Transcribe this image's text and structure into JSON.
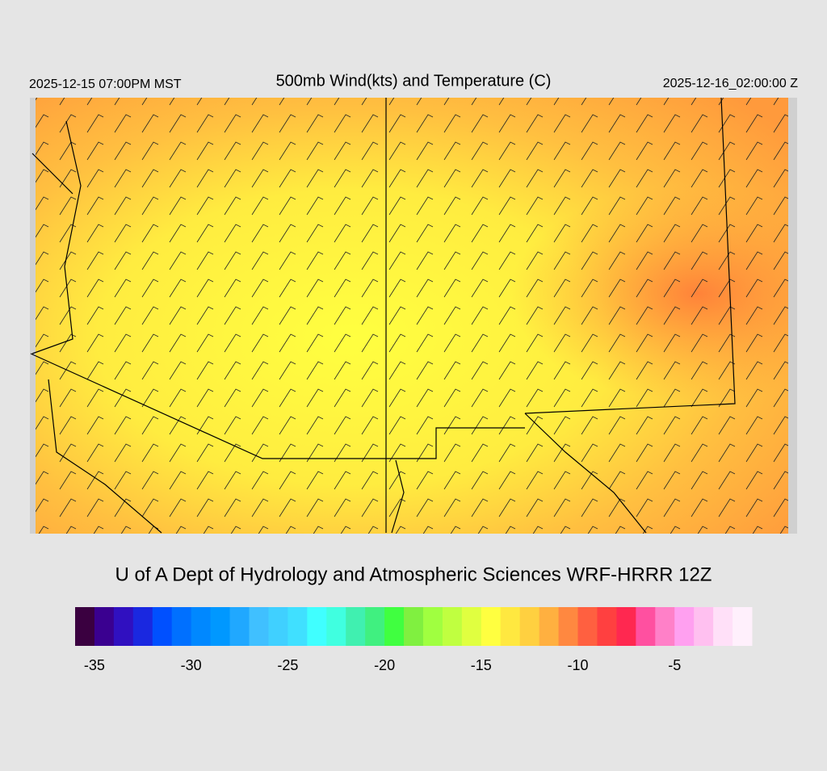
{
  "header": {
    "left": "2025-12-15 07:00PM MST",
    "title": "500mb Wind(kts) and Temperature (C)",
    "right": "2025-12-16_02:00:00 Z"
  },
  "credit": "U of A Dept of Hydrology and Atmospheric Sciences WRF-HRRR 12Z",
  "colorbar": {
    "xlim": [
      -36,
      -1
    ],
    "xticks": [
      -35,
      -30,
      -25,
      -20,
      -15,
      -10,
      -5
    ],
    "colors": [
      "#3a0040",
      "#3a0090",
      "#3010c0",
      "#1a28e0",
      "#0050ff",
      "#0070ff",
      "#0088ff",
      "#0098ff",
      "#20a8ff",
      "#40c0ff",
      "#40d0ff",
      "#40e0ff",
      "#40ffff",
      "#40ffe0",
      "#40f0b0",
      "#40f080",
      "#40ff40",
      "#80f040",
      "#a0ff40",
      "#c0ff40",
      "#e0ff40",
      "#ffff40",
      "#ffe840",
      "#ffd040",
      "#ffb040",
      "#ff8840",
      "#ff6040",
      "#ff4040",
      "#ff2850",
      "#ff50a0",
      "#ff80c8",
      "#ffa0f0",
      "#ffc0f0",
      "#ffe0f8",
      "#fff0fc"
    ]
  }
}
